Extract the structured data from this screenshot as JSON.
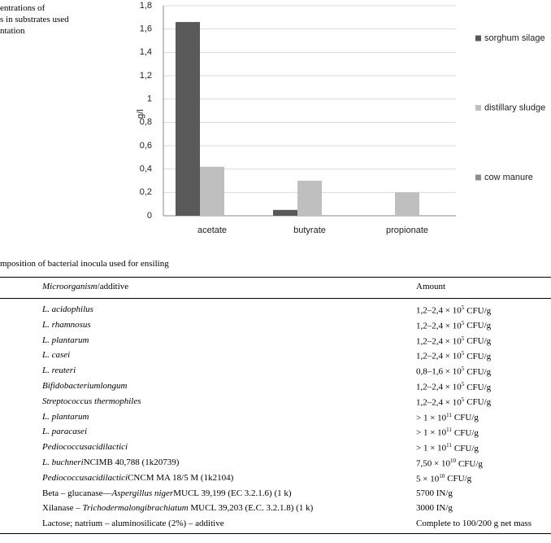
{
  "caption_top": [
    "entrations of",
    "s in substrates used",
    "ntation"
  ],
  "chart_data": {
    "type": "bar",
    "ylabel": "g/l",
    "categories": [
      "acetate",
      "butyrate",
      "propionate"
    ],
    "series": [
      {
        "name": "sorghum silage",
        "color": "#595959",
        "values": [
          1.66,
          0.05,
          0
        ]
      },
      {
        "name": "distillary sludge",
        "color": "#bfbfbf",
        "values": [
          0.42,
          0.3,
          0.2
        ]
      },
      {
        "name": "cow manure",
        "color": "#8c8c8c",
        "values": [
          0,
          0,
          0
        ]
      }
    ],
    "ylim": [
      0,
      1.8
    ],
    "yticks": [
      0,
      {
        "value": 0.2,
        "label": "0,2"
      },
      {
        "value": 0.4,
        "label": "0,4"
      },
      {
        "value": 0.6,
        "label": "0,6"
      },
      {
        "value": 0.8,
        "label": "0,8"
      },
      1,
      {
        "value": 1.2,
        "label": "1,2"
      },
      {
        "value": 1.4,
        "label": "1,4"
      },
      {
        "value": 1.6,
        "label": "1,6"
      },
      {
        "value": 1.8,
        "label": "1,8"
      }
    ],
    "grid": true,
    "legend": "right"
  },
  "table": {
    "caption": "mposition of bacterial inocula used for ensiling",
    "header": {
      "organism": [
        {
          "text": "Microorganism",
          "italic": true
        },
        {
          "text": "/additive",
          "italic": false
        }
      ],
      "amount": "Amount"
    },
    "rows": [
      {
        "organism": [
          {
            "text": "L. acidophilus",
            "italic": true
          }
        ],
        "amount": {
          "pre": "1,2–2,4 × 10",
          "exp": "5",
          "post": "CFU/g"
        }
      },
      {
        "organism": [
          {
            "text": "L. rhamnosus",
            "italic": true
          }
        ],
        "amount": {
          "pre": "1,2–2,4 × 10",
          "exp": "5",
          "post": "CFU/g"
        }
      },
      {
        "organism": [
          {
            "text": "L. plantarum",
            "italic": true
          }
        ],
        "amount": {
          "pre": "1,2–2,4 × 10",
          "exp": "5",
          "post": "CFU/g"
        }
      },
      {
        "organism": [
          {
            "text": "L. casei",
            "italic": true
          }
        ],
        "amount": {
          "pre": "1,2–2,4 × 10",
          "exp": "5",
          "post": "CFU/g"
        }
      },
      {
        "organism": [
          {
            "text": "L. reuteri",
            "italic": true
          }
        ],
        "amount": {
          "pre": "0,8–1,6 × 10",
          "exp": "5",
          "post": "CFU/g"
        }
      },
      {
        "organism": [
          {
            "text": "Bifidobacteriumlongum",
            "italic": true
          }
        ],
        "amount": {
          "pre": "1,2–2,4 × 10",
          "exp": "5",
          "post": "CFU/g"
        }
      },
      {
        "organism": [
          {
            "text": "Streptococcus thermophiles",
            "italic": true
          }
        ],
        "amount": {
          "pre": "1,2–2,4 × 10",
          "exp": "5",
          "post": "CFU/g"
        }
      },
      {
        "organism": [
          {
            "text": "L. plantarum",
            "italic": true
          }
        ],
        "amount": {
          "pre": "> 1 × 10",
          "exp": "11",
          "post": "CFU/g"
        }
      },
      {
        "organism": [
          {
            "text": "L. paracasei",
            "italic": true
          }
        ],
        "amount": {
          "pre": "> 1 × 10",
          "exp": "11",
          "post": "CFU/g"
        }
      },
      {
        "organism": [
          {
            "text": "Pediococcusacidilactici",
            "italic": true
          }
        ],
        "amount": {
          "pre": "> 1 × 10",
          "exp": "11",
          "post": "CFU/g"
        }
      },
      {
        "organism": [
          {
            "text": "L. buchneri",
            "italic": true
          },
          {
            "text": "NCIMB 40,788 (1k20739)",
            "italic": false
          }
        ],
        "amount": {
          "pre": "7,50 × 10",
          "exp": "10",
          "post": "CFU/g"
        }
      },
      {
        "organism": [
          {
            "text": "Pediococcusacidilactici",
            "italic": true
          },
          {
            "text": "CNCM MA 18/5 M (1k2104)",
            "italic": false
          }
        ],
        "amount": {
          "pre": "5 × 10",
          "exp": "10",
          "post": "CFU/g"
        }
      },
      {
        "organism": [
          {
            "text": "Beta – glucanase—",
            "italic": false
          },
          {
            "text": "Aspergillus niger",
            "italic": true
          },
          {
            "text": "MUCL 39,199 (EC 3.2.1.6) (1 k)",
            "italic": false
          }
        ],
        "amount": {
          "pre": "5700 IN/g"
        }
      },
      {
        "organism": [
          {
            "text": "Xilanase – ",
            "italic": false
          },
          {
            "text": "Trichodermalongibrachiatum",
            "italic": true
          },
          {
            "text": " MUCL 39,203 (E.C. 3.2.1.8) (1 k)",
            "italic": false
          }
        ],
        "amount": {
          "pre": "3000 IN/g"
        }
      },
      {
        "organism": [
          {
            "text": "Lactose; natrium – aluminosilicate (2%) – additive",
            "italic": false
          }
        ],
        "amount": {
          "pre": "Complete to 100/200 g net mass"
        }
      }
    ]
  }
}
